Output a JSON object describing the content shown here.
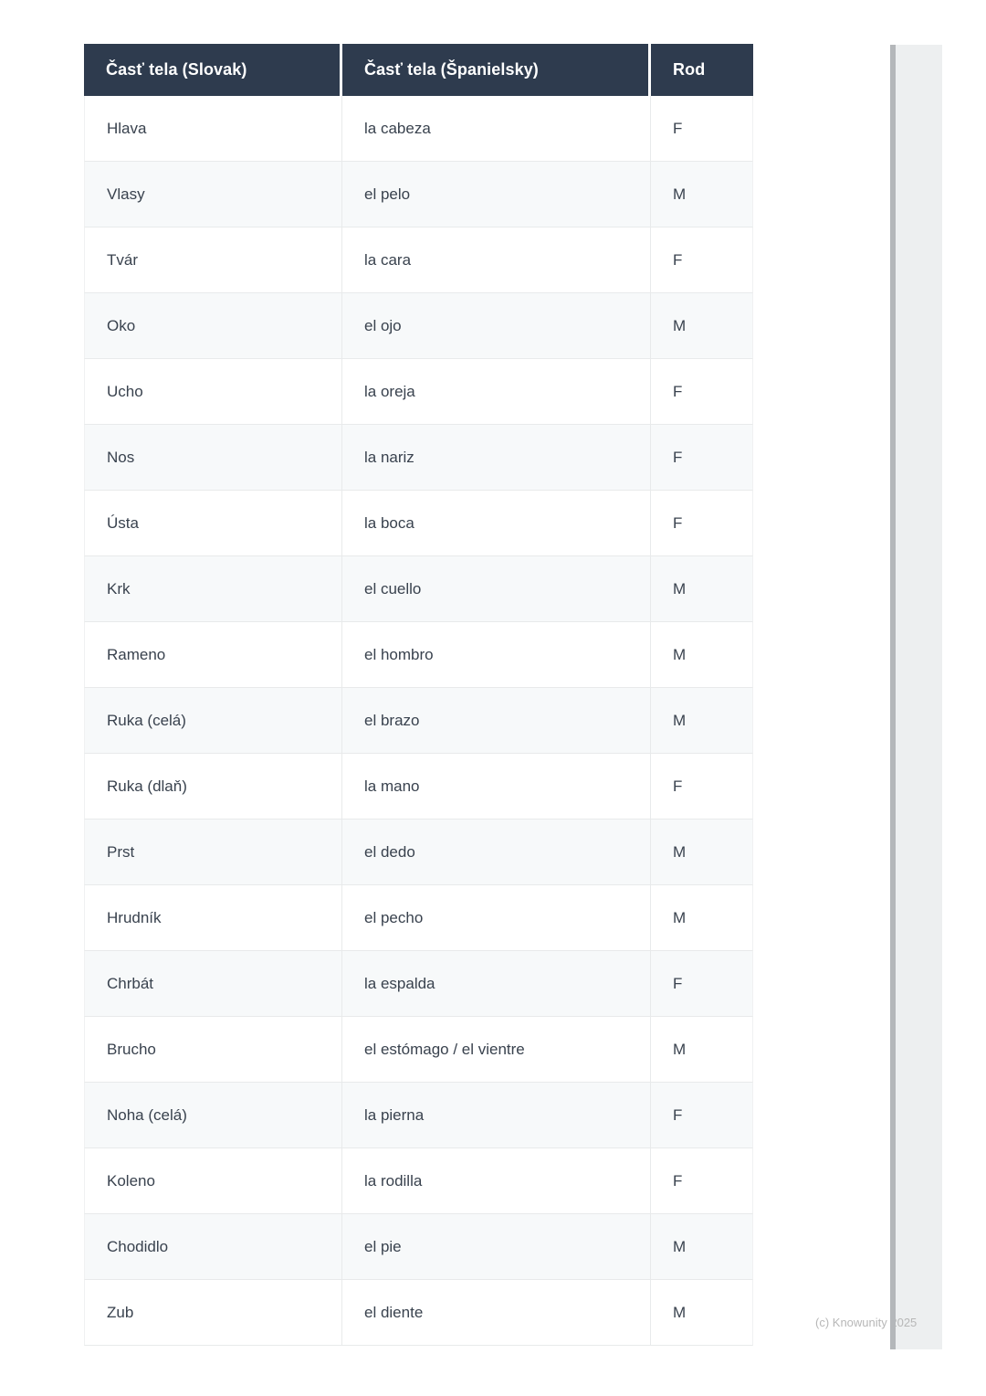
{
  "table": {
    "header": {
      "col_slovak": "Časť tela (Slovak)",
      "col_spanish": "Časť tela (Španielsky)",
      "col_rod": "Rod"
    },
    "rows": [
      {
        "slovak": "Hlava",
        "spanish": "la cabeza",
        "rod": "F"
      },
      {
        "slovak": "Vlasy",
        "spanish": "el pelo",
        "rod": "M"
      },
      {
        "slovak": "Tvár",
        "spanish": "la cara",
        "rod": "F"
      },
      {
        "slovak": "Oko",
        "spanish": "el ojo",
        "rod": "M"
      },
      {
        "slovak": "Ucho",
        "spanish": "la oreja",
        "rod": "F"
      },
      {
        "slovak": "Nos",
        "spanish": "la nariz",
        "rod": "F"
      },
      {
        "slovak": "Ústa",
        "spanish": "la boca",
        "rod": "F"
      },
      {
        "slovak": "Krk",
        "spanish": "el cuello",
        "rod": "M"
      },
      {
        "slovak": "Rameno",
        "spanish": "el hombro",
        "rod": "M"
      },
      {
        "slovak": "Ruka (celá)",
        "spanish": "el brazo",
        "rod": "M"
      },
      {
        "slovak": "Ruka (dlaň)",
        "spanish": "la mano",
        "rod": "F"
      },
      {
        "slovak": "Prst",
        "spanish": "el dedo",
        "rod": "M"
      },
      {
        "slovak": "Hrudník",
        "spanish": "el pecho",
        "rod": "M"
      },
      {
        "slovak": "Chrbát",
        "spanish": "la espalda",
        "rod": "F"
      },
      {
        "slovak": "Brucho",
        "spanish": "el estómago / el vientre",
        "rod": "M"
      },
      {
        "slovak": "Noha (celá)",
        "spanish": "la pierna",
        "rod": "F"
      },
      {
        "slovak": "Koleno",
        "spanish": "la rodilla",
        "rod": "F"
      },
      {
        "slovak": "Chodidlo",
        "spanish": "el pie",
        "rod": "M"
      },
      {
        "slovak": "Zub",
        "spanish": "el diente",
        "rod": "M"
      }
    ]
  },
  "watermark": "(c) Knowunity 2025",
  "colors": {
    "header_bg": "#2e3b4e",
    "header_text": "#ffffff",
    "row_alt": "#f7f9fa",
    "row_bg": "#ffffff",
    "border": "#e8eaeb",
    "cell_text": "#39424e",
    "watermark_text": "#b7b7b7",
    "scroll_thumb": "#b4b7ba",
    "scroll_track": "#edeff0"
  }
}
